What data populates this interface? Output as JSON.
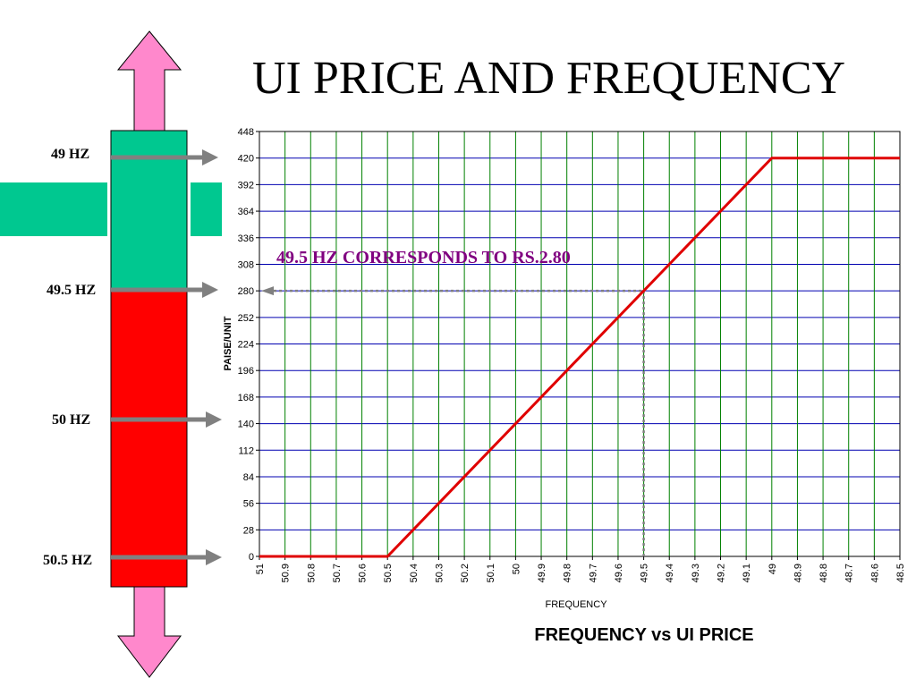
{
  "slide": {
    "title": "UI PRICE AND FREQUENCY"
  },
  "frequency_bar": {
    "markers": [
      {
        "label": "49 HZ",
        "hz": 49.0
      },
      {
        "label": "49.5 HZ",
        "hz": 49.5
      },
      {
        "label": "50 HZ",
        "hz": 50.0
      },
      {
        "label": "50.5 HZ",
        "hz": 50.5
      }
    ],
    "colors": {
      "upper_band": "#00c890",
      "lower_band": "#ff0000",
      "arrow": "#ff88cc",
      "pointer": "#808080"
    }
  },
  "chart_data": {
    "type": "line",
    "title": "FREQUENCY vs UI PRICE",
    "xlabel": "FREQUENCY",
    "ylabel": "PAISE/UNIT",
    "x_ticks": [
      "51",
      "50.9",
      "50.8",
      "50.7",
      "50.6",
      "50.5",
      "50.4",
      "50.3",
      "50.2",
      "50.1",
      "50",
      "49.9",
      "49.8",
      "49.7",
      "49.6",
      "49.5",
      "49.4",
      "49.3",
      "49.2",
      "49.1",
      "49",
      "48.9",
      "48.8",
      "48.7",
      "48.6",
      "48.5"
    ],
    "y_ticks": [
      0,
      28,
      56,
      84,
      112,
      140,
      168,
      196,
      224,
      252,
      280,
      308,
      336,
      364,
      392,
      420,
      448
    ],
    "xlim": [
      51,
      48.5
    ],
    "ylim": [
      0,
      448
    ],
    "grid": true,
    "series": [
      {
        "color": "#e00000",
        "points": [
          [
            51,
            0
          ],
          [
            50.5,
            0
          ],
          [
            49.0,
            420
          ],
          [
            48.5,
            420
          ]
        ]
      }
    ],
    "annotation": {
      "text": "49.5 HZ CORRESPONDS TO RS.2.80",
      "x": 49.5,
      "y": 280
    }
  }
}
